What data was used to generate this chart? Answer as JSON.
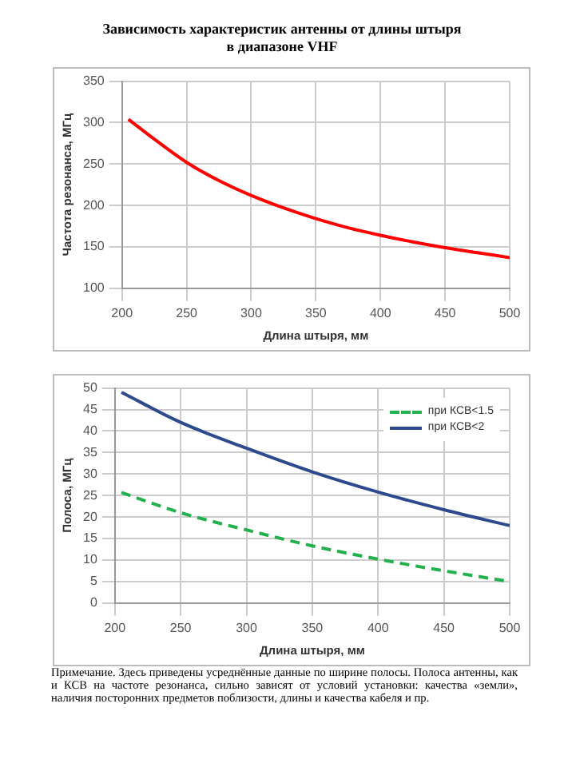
{
  "chart_data": [
    {
      "type": "line",
      "title": "Зависимость характеристик антенны от длины штыря\nв диапазоне VHF",
      "xlabel": "Длина штыря, мм",
      "ylabel": "Частота резонанса, МГц",
      "x": [
        205,
        225,
        250,
        275,
        300,
        325,
        350,
        375,
        400,
        425,
        450,
        475,
        500
      ],
      "series": [
        {
          "color": "#ff0000",
          "values": [
            304,
            280,
            252,
            230,
            212,
            197,
            184,
            173,
            164,
            156,
            149,
            143,
            137
          ]
        }
      ],
      "xlim": [
        200,
        500
      ],
      "xticks": [
        200,
        250,
        300,
        350,
        400,
        450,
        500
      ],
      "ylim": [
        100,
        350
      ],
      "yticks": [
        100,
        150,
        200,
        250,
        300,
        350
      ],
      "grid": true,
      "legend": false,
      "marker": "none"
    },
    {
      "type": "line",
      "xlabel": "Длина штыря, мм",
      "ylabel": "Полоса, МГц",
      "x": [
        205,
        250,
        300,
        350,
        400,
        450,
        500
      ],
      "series": [
        {
          "name": "при КСВ<1.5",
          "color": "#22b14c",
          "line_style": "dashed",
          "values": [
            25.7,
            21,
            17,
            13.3,
            10.2,
            7.5,
            5
          ]
        },
        {
          "name": "при КСВ<2",
          "color": "#2e4a8e",
          "line_style": "solid",
          "values": [
            49,
            42,
            36,
            30.5,
            25.8,
            21.7,
            18
          ]
        }
      ],
      "xlim": [
        200,
        500
      ],
      "xticks": [
        200,
        250,
        300,
        350,
        400,
        450,
        500
      ],
      "ylim": [
        0,
        50
      ],
      "yticks": [
        0,
        5,
        10,
        15,
        20,
        25,
        30,
        35,
        40,
        45,
        50
      ],
      "grid": true,
      "legend": "top right",
      "marker": "none",
      "annotations": [
        "Примечание. Здесь приведены усреднённые данные по ширине полосы. Полоса антенны, как и КСВ на частоте резонанса, сильно зависят от условий установки: качества «земли», наличия посторонних предметов поблизости, длины и качества кабеля и пр."
      ]
    }
  ]
}
